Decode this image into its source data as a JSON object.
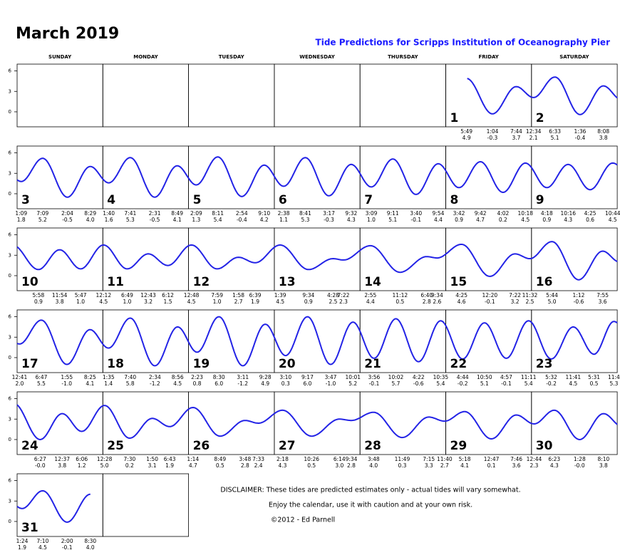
{
  "title": "March 2019",
  "subtitle": "Tide Predictions for Scripps Institution of Oceanography Pier",
  "weekdays": [
    "SUNDAY",
    "MONDAY",
    "TUESDAY",
    "WEDNESDAY",
    "THURSDAY",
    "FRIDAY",
    "SATURDAY"
  ],
  "disclaimer": [
    "DISCLAIMER: These tides are predicted estimates only - actual tides will vary somewhat.",
    "Enjoy the calendar, use it with caution and at your own risk.",
    "©2012 - Ed Parnell"
  ],
  "chart_data": {
    "type": "tide-calendar",
    "ylim": [
      -2.2,
      7
    ],
    "yticks": [
      0,
      3,
      6
    ],
    "color": "#2323e6",
    "days": [
      {
        "day": 1,
        "times": [
          "5:49",
          "1:04",
          "7:44"
        ],
        "heights": [
          4.9,
          -0.3,
          3.7
        ],
        "height_labels": [
          "4.9",
          "-0.3",
          "3.7"
        ]
      },
      {
        "day": 2,
        "times": [
          "12:34",
          "6:33",
          "1:36",
          "8:08"
        ],
        "heights": [
          2.1,
          5.1,
          -0.4,
          3.8
        ],
        "height_labels": [
          "2.1",
          "5.1",
          "-0.4",
          "3.8"
        ]
      },
      {
        "day": 3,
        "times": [
          "1:09",
          "7:09",
          "2:04",
          "8:29"
        ],
        "heights": [
          1.8,
          5.2,
          -0.5,
          4
        ],
        "height_labels": [
          "1.8",
          "5.2",
          "-0.5",
          "4.0"
        ]
      },
      {
        "day": 4,
        "times": [
          "1:40",
          "7:41",
          "2:31",
          "8:49"
        ],
        "heights": [
          1.6,
          5.3,
          -0.5,
          4.1
        ],
        "height_labels": [
          "1.6",
          "5.3",
          "-0.5",
          "4.1"
        ]
      },
      {
        "day": 5,
        "times": [
          "2:09",
          "8:11",
          "2:54",
          "9:10"
        ],
        "heights": [
          1.3,
          5.4,
          -0.4,
          4.2
        ],
        "height_labels": [
          "1.3",
          "5.4",
          "-0.4",
          "4.2"
        ]
      },
      {
        "day": 6,
        "times": [
          "2:38",
          "8:41",
          "3:17",
          "9:32"
        ],
        "heights": [
          1.1,
          5.3,
          -0.3,
          4.3
        ],
        "height_labels": [
          "1.1",
          "5.3",
          "-0.3",
          "4.3"
        ]
      },
      {
        "day": 7,
        "times": [
          "3:09",
          "9:11",
          "3:40",
          "9:54"
        ],
        "heights": [
          1,
          5.1,
          -0.1,
          4.4
        ],
        "height_labels": [
          "1.0",
          "5.1",
          "-0.1",
          "4.4"
        ]
      },
      {
        "day": 8,
        "times": [
          "3:42",
          "9:42",
          "4:02",
          "10:18"
        ],
        "heights": [
          0.9,
          4.7,
          0.2,
          4.5
        ],
        "height_labels": [
          "0.9",
          "4.7",
          "0.2",
          "4.5"
        ]
      },
      {
        "day": 9,
        "times": [
          "4:18",
          "10:16",
          "4:25",
          "10:44"
        ],
        "heights": [
          0.9,
          4.3,
          0.6,
          4.5
        ],
        "height_labels": [
          "0.9",
          "4.3",
          "0.6",
          "4.5"
        ]
      },
      {
        "day": 10,
        "times": [
          "5:58",
          "11:54",
          "5:47"
        ],
        "heights": [
          0.9,
          3.8,
          1
        ],
        "height_labels": [
          "0.9",
          "3.8",
          "1.0"
        ]
      },
      {
        "day": 11,
        "times": [
          "12:12",
          "6:49",
          "12:43",
          "6:12"
        ],
        "heights": [
          4.5,
          1,
          3.2,
          1.5
        ],
        "height_labels": [
          "4.5",
          "1.0",
          "3.2",
          "1.5"
        ]
      },
      {
        "day": 12,
        "times": [
          "12:48",
          "7:59",
          "1:58",
          "6:39"
        ],
        "heights": [
          4.5,
          1,
          2.7,
          1.9
        ],
        "height_labels": [
          "4.5",
          "1.0",
          "2.7",
          "1.9"
        ]
      },
      {
        "day": 13,
        "times": [
          "1:39",
          "9:34",
          "4:28",
          "7:22"
        ],
        "heights": [
          4.5,
          0.9,
          2.5,
          2.3
        ],
        "height_labels": [
          "4.5",
          "0.9",
          "2.5",
          "2.3"
        ]
      },
      {
        "day": 14,
        "times": [
          "2:55",
          "11:12",
          "6:40",
          "9:34"
        ],
        "heights": [
          4.4,
          0.5,
          2.8,
          2.6
        ],
        "height_labels": [
          "4.4",
          "0.5",
          "2.8",
          "2.6"
        ]
      },
      {
        "day": 15,
        "times": [
          "4:25",
          "12:20",
          "7:22",
          "11:32"
        ],
        "heights": [
          4.6,
          -0.1,
          3.2,
          2.5
        ],
        "height_labels": [
          "4.6",
          "-0.1",
          "3.2",
          "2.5"
        ]
      },
      {
        "day": 16,
        "times": [
          "5:44",
          "1:12",
          "7:55"
        ],
        "heights": [
          5,
          -0.6,
          3.6
        ],
        "height_labels": [
          "5.0",
          "-0.6",
          "3.6"
        ]
      },
      {
        "day": 17,
        "times": [
          "12:41",
          "6:47",
          "1:55",
          "8:25"
        ],
        "heights": [
          2,
          5.5,
          -1,
          4.1
        ],
        "height_labels": [
          "2.0",
          "5.5",
          "-1.0",
          "4.1"
        ]
      },
      {
        "day": 18,
        "times": [
          "1:35",
          "7:40",
          "2:34",
          "8:56"
        ],
        "heights": [
          1.4,
          5.8,
          -1.2,
          4.5
        ],
        "height_labels": [
          "1.4",
          "5.8",
          "-1.2",
          "4.5"
        ]
      },
      {
        "day": 19,
        "times": [
          "2:23",
          "8:30",
          "3:11",
          "9:28"
        ],
        "heights": [
          0.8,
          6,
          -1.2,
          4.9
        ],
        "height_labels": [
          "0.8",
          "6.0",
          "-1.2",
          "4.9"
        ]
      },
      {
        "day": 20,
        "times": [
          "3:10",
          "9:17",
          "3:47",
          "10:01"
        ],
        "heights": [
          0.3,
          6,
          -1,
          5.2
        ],
        "height_labels": [
          "0.3",
          "6.0",
          "-1.0",
          "5.2"
        ]
      },
      {
        "day": 21,
        "times": [
          "3:56",
          "10:02",
          "4:22",
          "10:35"
        ],
        "heights": [
          -0.1,
          5.7,
          -0.6,
          5.4
        ],
        "height_labels": [
          "-0.1",
          "5.7",
          "-0.6",
          "5.4"
        ]
      },
      {
        "day": 22,
        "times": [
          "4:44",
          "10:50",
          "4:57",
          "11:11"
        ],
        "heights": [
          -0.2,
          5.1,
          -0.1,
          5.4
        ],
        "height_labels": [
          "-0.2",
          "5.1",
          "-0.1",
          "5.4"
        ]
      },
      {
        "day": 23,
        "times": [
          "5:32",
          "11:41",
          "5:31",
          "11:4"
        ],
        "heights": [
          -0.2,
          4.5,
          0.5,
          5.3
        ],
        "height_labels": [
          "-0.2",
          "4.5",
          "0.5",
          "5.3"
        ]
      },
      {
        "day": 24,
        "times": [
          "6:27",
          "12:37",
          "6:06"
        ],
        "heights": [
          0,
          3.8,
          1.2
        ],
        "height_labels": [
          "-0.0",
          "3.8",
          "1.2"
        ]
      },
      {
        "day": 25,
        "times": [
          "12:28",
          "7:30",
          "1:50",
          "6:43"
        ],
        "heights": [
          5,
          0.2,
          3.1,
          1.9
        ],
        "height_labels": [
          "5.0",
          "0.2",
          "3.1",
          "1.9"
        ]
      },
      {
        "day": 26,
        "times": [
          "1:14",
          "8:49",
          "3:48",
          "7:33"
        ],
        "heights": [
          4.7,
          0.5,
          2.8,
          2.4
        ],
        "height_labels": [
          "4.7",
          "0.5",
          "2.8",
          "2.4"
        ]
      },
      {
        "day": 27,
        "times": [
          "2:18",
          "10:26",
          "6:14",
          "9:34"
        ],
        "heights": [
          4.3,
          0.5,
          3,
          2.8
        ],
        "height_labels": [
          "4.3",
          "0.5",
          "3.0",
          "2.8"
        ]
      },
      {
        "day": 28,
        "times": [
          "3:48",
          "11:49",
          "7:15",
          "11:40"
        ],
        "heights": [
          4,
          0.3,
          3.3,
          2.7
        ],
        "height_labels": [
          "4.0",
          "0.3",
          "3.3",
          "2.7"
        ]
      },
      {
        "day": 29,
        "times": [
          "5:18",
          "12:47",
          "7:46"
        ],
        "heights": [
          4.1,
          0.1,
          3.6
        ],
        "height_labels": [
          "4.1",
          "0.1",
          "3.6"
        ]
      },
      {
        "day": 30,
        "times": [
          "12:44",
          "6:23",
          "1:28",
          "8:10"
        ],
        "heights": [
          2.3,
          4.3,
          0,
          3.8
        ],
        "height_labels": [
          "2.3",
          "4.3",
          "-0.0",
          "3.8"
        ]
      },
      {
        "day": 31,
        "times": [
          "1:24",
          "7:10",
          "2:00",
          "8:30"
        ],
        "heights": [
          1.9,
          4.5,
          -0.1,
          4
        ],
        "height_labels": [
          "1.9",
          "4.5",
          "-0.1",
          "4.0"
        ]
      }
    ]
  }
}
